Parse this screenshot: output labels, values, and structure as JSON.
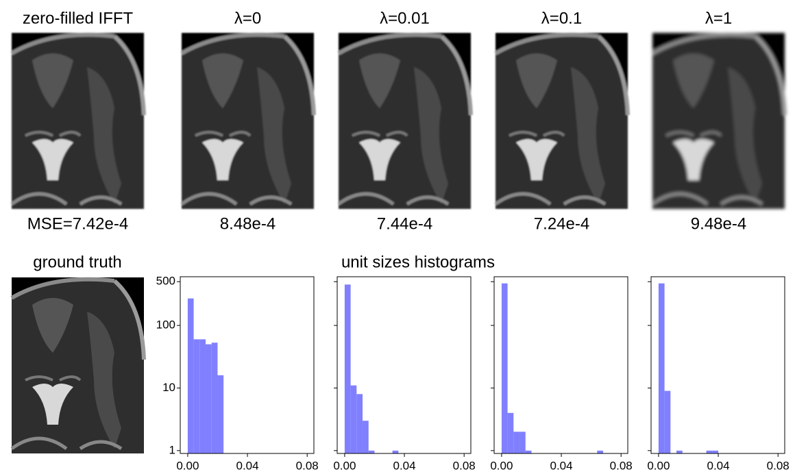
{
  "images": [
    {
      "title": "zero-filled IFFT",
      "caption": "MSE=7.42e-4"
    },
    {
      "title": "λ=0",
      "caption": "8.48e-4"
    },
    {
      "title": "λ=0.01",
      "caption": "7.44e-4"
    },
    {
      "title": "λ=0.1",
      "caption": "7.24e-4"
    },
    {
      "title": "λ=1",
      "caption": "9.48e-4"
    }
  ],
  "ground_truth": {
    "title": "ground truth"
  },
  "histograms_title": "unit sizes histograms",
  "chart_data": [
    {
      "type": "histogram",
      "color": "#8080ff",
      "log_y": true,
      "ytick_labels": true,
      "bins": [
        0,
        0.004,
        0.008,
        0.012,
        0.016,
        0.02,
        0.024
      ],
      "values": [
        270,
        60,
        60,
        50,
        53,
        16
      ],
      "xlim": [
        -0.005,
        0.0845
      ],
      "xticks": [
        {
          "value": 0,
          "label": "0.00"
        },
        0.04,
        0.08
      ],
      "ylim": [
        0.9,
        600
      ],
      "yticks": [
        1,
        10,
        100,
        500
      ]
    },
    {
      "type": "histogram",
      "color": "#8080ff",
      "log_y": true,
      "ytick_labels": false,
      "bins": [
        0,
        0.004,
        0.008,
        0.012,
        0.016,
        0.02,
        0.024,
        0.028,
        0.032,
        0.036
      ],
      "values": [
        450,
        11,
        8,
        3,
        1,
        0,
        0,
        0,
        1
      ],
      "xlim": [
        -0.005,
        0.0845
      ],
      "xticks": [
        {
          "value": 0,
          "label": "0.00"
        },
        0.04,
        0.08
      ],
      "ylim": [
        0.9,
        600
      ],
      "yticks": [
        1,
        10,
        100,
        500
      ]
    },
    {
      "type": "histogram",
      "color": "#8080ff",
      "log_y": true,
      "ytick_labels": false,
      "bins": [
        0,
        0.004,
        0.008,
        0.012,
        0.016,
        0.02,
        0.024,
        0.028,
        0.032,
        0.036,
        0.04,
        0.044,
        0.048,
        0.052,
        0.056,
        0.06,
        0.064,
        0.068
      ],
      "values": [
        470,
        4,
        2,
        2,
        1,
        0,
        0,
        0,
        0,
        0,
        0,
        0,
        0,
        0,
        0,
        0,
        1
      ],
      "xlim": [
        -0.005,
        0.0845
      ],
      "xticks": [
        {
          "value": 0,
          "label": "0.00"
        },
        0.04,
        0.08
      ],
      "ylim": [
        0.9,
        600
      ],
      "yticks": [
        1,
        10,
        100,
        500
      ]
    },
    {
      "type": "histogram",
      "color": "#8080ff",
      "log_y": true,
      "ytick_labels": false,
      "bins": [
        0,
        0.004,
        0.008,
        0.012,
        0.016,
        0.02,
        0.024,
        0.028,
        0.032,
        0.036,
        0.04
      ],
      "values": [
        470,
        9,
        0,
        1,
        0,
        0,
        0,
        0,
        1,
        1
      ],
      "xlim": [
        -0.005,
        0.0845
      ],
      "xticks": [
        {
          "value": 0,
          "label": "0.00"
        },
        0.04,
        0.08
      ],
      "ylim": [
        0.9,
        600
      ],
      "yticks": [
        1,
        10,
        100,
        500
      ]
    }
  ]
}
